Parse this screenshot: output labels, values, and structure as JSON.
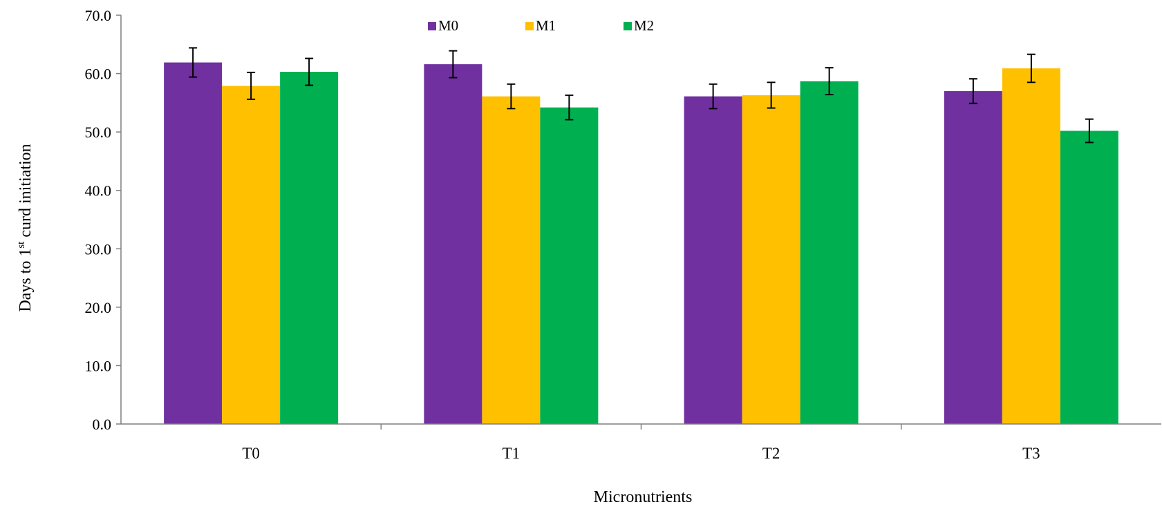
{
  "chart_data": {
    "type": "bar",
    "categories": [
      "T0",
      "T1",
      "T2",
      "T3"
    ],
    "series": [
      {
        "name": "M0",
        "color": "#7030a0",
        "values": [
          61.9,
          61.6,
          56.1,
          57.0
        ],
        "errors": [
          2.5,
          2.3,
          2.1,
          2.1
        ]
      },
      {
        "name": "M1",
        "color": "#ffc000",
        "values": [
          57.9,
          56.1,
          56.3,
          60.9
        ],
        "errors": [
          2.3,
          2.1,
          2.2,
          2.4
        ]
      },
      {
        "name": "M2",
        "color": "#00b050",
        "values": [
          60.3,
          54.2,
          58.7,
          50.2
        ],
        "errors": [
          2.3,
          2.1,
          2.3,
          2.0
        ]
      }
    ],
    "ylim": [
      0,
      70
    ],
    "yticks": [
      "0.0",
      "10.0",
      "20.0",
      "30.0",
      "40.0",
      "50.0",
      "60.0",
      "70.0"
    ],
    "ylabel": "Days to 1st curd initiation",
    "ylabel_parts": {
      "before": "Days to 1",
      "sup": "st",
      "after": " curd initiation"
    },
    "xlabel": "Micronutrients",
    "legend_position": "top-center",
    "grid": false
  }
}
